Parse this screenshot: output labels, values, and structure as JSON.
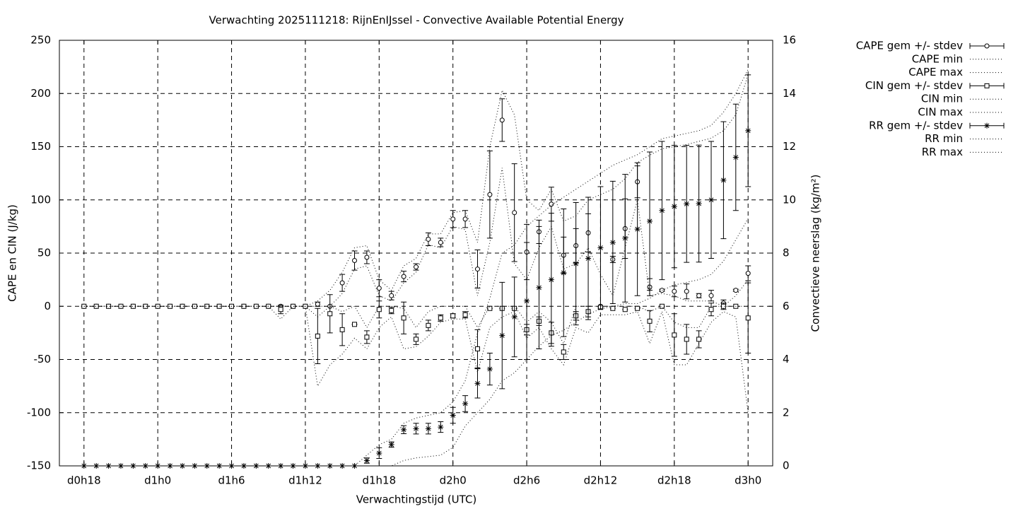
{
  "chart_data": {
    "type": "line",
    "title": "Verwachting 2025111218: RijnEnIJssel - Convective Available Potential Energy",
    "xlabel": "Verwachtingstijd (UTC)",
    "ylabel": "CAPE en CIN (J/kg)",
    "y2label": "Convectieve neerslag (kg/m²)",
    "x": [
      18,
      19,
      20,
      21,
      22,
      23,
      24,
      25,
      26,
      27,
      28,
      29,
      30,
      31,
      32,
      33,
      34,
      35,
      36,
      37,
      38,
      39,
      40,
      41,
      42,
      43,
      44,
      45,
      46,
      47,
      48,
      49,
      50,
      51,
      52,
      53,
      54,
      55,
      56,
      57,
      58,
      59,
      60,
      61,
      62,
      63,
      64,
      65,
      66,
      67,
      68,
      69,
      70,
      71,
      72
    ],
    "xlim": [
      16,
      74
    ],
    "xticks": [
      {
        "value": 18,
        "label": "d0h18"
      },
      {
        "value": 24,
        "label": "d1h0"
      },
      {
        "value": 30,
        "label": "d1h6"
      },
      {
        "value": 36,
        "label": "d1h12"
      },
      {
        "value": 42,
        "label": "d1h18"
      },
      {
        "value": 48,
        "label": "d2h0"
      },
      {
        "value": 54,
        "label": "d2h6"
      },
      {
        "value": 60,
        "label": "d2h12"
      },
      {
        "value": 66,
        "label": "d2h18"
      },
      {
        "value": 72,
        "label": "d3h0"
      }
    ],
    "ylim": [
      -150,
      250
    ],
    "yticks": [
      -150,
      -100,
      -50,
      0,
      50,
      100,
      150,
      200,
      250
    ],
    "y2lim": [
      0,
      16
    ],
    "y2ticks": [
      0,
      2,
      4,
      6,
      8,
      10,
      12,
      14,
      16
    ],
    "grid": true,
    "series": [
      {
        "name": "CAPE gem +/- stdev",
        "color": "#000000",
        "style": "errorbar",
        "marker": "circle",
        "values": [
          0,
          0,
          0,
          0,
          0,
          0,
          0,
          0,
          0,
          0,
          0,
          0,
          0,
          0,
          0,
          0,
          0,
          0,
          0,
          2,
          0,
          22,
          43,
          46,
          17,
          10,
          28,
          37,
          63,
          60,
          82,
          82,
          35,
          105,
          175,
          88,
          51,
          70,
          96,
          48,
          57,
          69,
          0,
          44,
          73,
          117,
          18,
          15,
          14,
          14,
          10,
          10,
          3,
          15,
          31
        ],
        "errors": [
          0,
          0,
          0,
          0,
          0,
          0,
          0,
          0,
          0,
          0,
          0,
          0,
          0,
          0,
          0,
          0,
          0,
          0,
          0,
          2,
          0,
          8,
          9,
          6,
          8,
          4,
          5,
          3,
          6,
          4,
          8,
          8,
          18,
          41,
          20,
          46,
          26,
          11,
          16,
          17,
          16,
          18,
          0,
          3,
          28,
          15,
          8,
          1,
          5,
          7,
          2,
          5,
          3,
          1,
          7
        ]
      },
      {
        "name": "CAPE min",
        "color": "#000000",
        "style": "dotted",
        "values": [
          0,
          0,
          0,
          0,
          0,
          0,
          0,
          0,
          0,
          0,
          0,
          0,
          0,
          0,
          0,
          0,
          0,
          0,
          0,
          0,
          0,
          12,
          35,
          38,
          10,
          5,
          22,
          32,
          58,
          55,
          75,
          72,
          10,
          60,
          130,
          40,
          25,
          55,
          75,
          35,
          40,
          55,
          30,
          10,
          55,
          100,
          10,
          12,
          10,
          5,
          5,
          5,
          0,
          10,
          25
        ]
      },
      {
        "name": "CAPE max",
        "color": "#000000",
        "style": "dotted",
        "values": [
          0,
          0,
          0,
          0,
          0,
          0,
          0,
          0,
          0,
          0,
          0,
          0,
          0,
          0,
          0,
          0,
          0,
          0,
          0,
          5,
          15,
          32,
          55,
          57,
          25,
          15,
          38,
          45,
          68,
          68,
          88,
          90,
          60,
          150,
          203,
          180,
          100,
          90,
          110,
          80,
          85,
          100,
          105,
          110,
          120,
          135,
          142,
          148,
          150,
          152,
          155,
          158,
          165,
          180,
          218
        ]
      },
      {
        "name": "CIN gem +/- stdev",
        "color": "#000000",
        "style": "errorbar",
        "marker": "square",
        "values": [
          0,
          0,
          0,
          0,
          0,
          0,
          0,
          0,
          0,
          0,
          0,
          0,
          0,
          0,
          0,
          0,
          -3,
          0,
          0,
          -28,
          -7,
          -22,
          -17,
          -29,
          -3,
          -4,
          -11,
          -31,
          -18,
          -11,
          -9,
          -8,
          -40,
          -2,
          -2,
          -2,
          -22,
          -14,
          -25,
          -43,
          -9,
          -5,
          -1,
          -2,
          -3,
          -2,
          -14,
          0,
          -27,
          -31,
          -31,
          -3,
          0,
          0,
          -11
        ],
        "errors": [
          0,
          0,
          0,
          0,
          0,
          0,
          0,
          0,
          0,
          0,
          0,
          0,
          0,
          0,
          0,
          0,
          4,
          0,
          0,
          26,
          18,
          15,
          0,
          6,
          8,
          3,
          15,
          5,
          5,
          3,
          2,
          3,
          18,
          0,
          0,
          0,
          5,
          4,
          10,
          7,
          4,
          5,
          0,
          0,
          0,
          0,
          10,
          0,
          20,
          14,
          8,
          6,
          3,
          0,
          33
        ]
      },
      {
        "name": "CIN min",
        "color": "#000000",
        "style": "dotted",
        "values": [
          0,
          0,
          0,
          0,
          0,
          0,
          0,
          0,
          0,
          0,
          0,
          0,
          0,
          0,
          0,
          0,
          -12,
          0,
          0,
          -75,
          -55,
          -45,
          -30,
          -40,
          -20,
          -10,
          -40,
          -38,
          -28,
          -15,
          -12,
          -12,
          -62,
          -20,
          -10,
          -5,
          -30,
          -20,
          -40,
          -55,
          -20,
          -25,
          -8,
          -8,
          -8,
          -5,
          -35,
          -5,
          -55,
          -55,
          -35,
          -15,
          -5,
          -10,
          -100
        ]
      },
      {
        "name": "CIN max",
        "color": "#000000",
        "style": "dotted",
        "values": [
          0,
          0,
          0,
          0,
          0,
          0,
          0,
          0,
          0,
          0,
          0,
          0,
          0,
          0,
          0,
          0,
          0,
          0,
          0,
          -10,
          0,
          -5,
          0,
          -20,
          0,
          0,
          -2,
          -20,
          -5,
          0,
          0,
          0,
          -20,
          0,
          0,
          0,
          -15,
          -5,
          -15,
          -35,
          0,
          0,
          0,
          0,
          0,
          0,
          -5,
          0,
          -15,
          -20,
          -20,
          0,
          0,
          0,
          0
        ]
      },
      {
        "name": "RR gem +/- stdev",
        "color": "#000000",
        "style": "errorbar",
        "marker": "star",
        "axis": "y2",
        "values": [
          0,
          0,
          0,
          0,
          0,
          0,
          0,
          0,
          0,
          0,
          0,
          0,
          0,
          0,
          0,
          0,
          0,
          0,
          0,
          0,
          0,
          0,
          0,
          0.2,
          0.48,
          0.8,
          1.36,
          1.4,
          1.4,
          1.46,
          1.9,
          2.34,
          3.1,
          3.64,
          4.9,
          5.6,
          6.2,
          6.7,
          7.0,
          7.26,
          7.6,
          7.8,
          8.2,
          8.4,
          8.56,
          8.9,
          9.2,
          9.6,
          9.75,
          9.85,
          9.86,
          10.0,
          10.74,
          11.6,
          12.6
        ],
        "errors": [
          0,
          0,
          0,
          0,
          0,
          0,
          0,
          0,
          0,
          0,
          0,
          0,
          0,
          0,
          0,
          0,
          0,
          0,
          0,
          0,
          0,
          0,
          0,
          0.1,
          0.2,
          0.1,
          0.15,
          0.2,
          0.2,
          0.2,
          0.3,
          0.3,
          0.55,
          0.6,
          2.0,
          1.5,
          2.2,
          2.3,
          2.5,
          2.4,
          2.3,
          2.3,
          2.3,
          2.3,
          2.4,
          2.5,
          2.6,
          2.6,
          2.3,
          2.2,
          2.2,
          2.2,
          2.2,
          2.0,
          2.1
        ]
      },
      {
        "name": "RR min",
        "color": "#000000",
        "style": "dotted",
        "axis": "y2",
        "values": [
          0,
          0,
          0,
          0,
          0,
          0,
          0,
          0,
          0,
          0,
          0,
          0,
          0,
          0,
          0,
          0,
          0,
          0,
          0,
          0,
          0,
          0,
          0,
          0,
          0,
          0,
          0.2,
          0.3,
          0.35,
          0.4,
          0.7,
          1.5,
          2.0,
          2.5,
          3.2,
          3.5,
          4.0,
          4.5,
          4.9,
          5.1,
          5.4,
          5.7,
          5.9,
          6.0,
          6.1,
          6.1,
          6.3,
          6.6,
          6.8,
          6.9,
          7.0,
          7.2,
          7.7,
          8.5,
          9.3
        ]
      },
      {
        "name": "RR max",
        "color": "#000000",
        "style": "dotted",
        "axis": "y2",
        "values": [
          0,
          0,
          0,
          0,
          0,
          0,
          0,
          0,
          0,
          0,
          0,
          0,
          0,
          0,
          0,
          0,
          0,
          0,
          0,
          0,
          0,
          0,
          0,
          0.4,
          0.8,
          1.0,
          1.6,
          1.8,
          1.9,
          2.0,
          2.4,
          3.2,
          5.0,
          6.3,
          8.0,
          8.3,
          9.0,
          9.4,
          9.8,
          10.1,
          10.4,
          10.7,
          11.0,
          11.3,
          11.5,
          11.7,
          12.0,
          12.3,
          12.4,
          12.5,
          12.6,
          12.8,
          13.3,
          14.0,
          14.9
        ]
      }
    ]
  }
}
